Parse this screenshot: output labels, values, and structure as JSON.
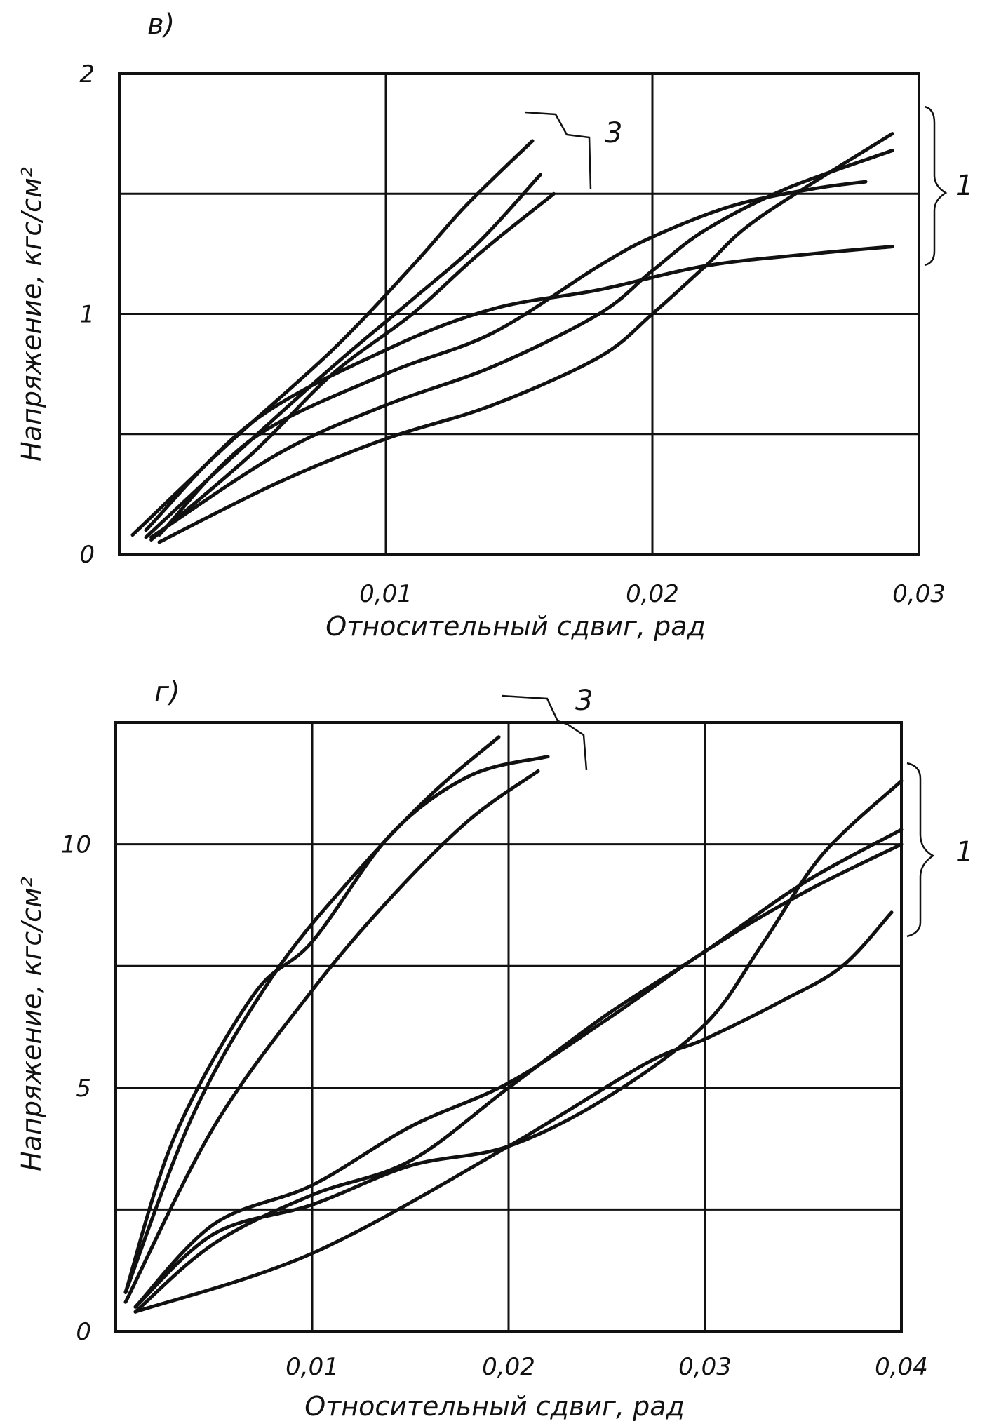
{
  "chart_data": [
    {
      "panel_label": "в)",
      "type": "line",
      "xlabel": "Относительный сдвиг, рад",
      "ylabel": "Напряжение, кгс/см²",
      "xlim": [
        0,
        0.03
      ],
      "ylim": [
        0,
        2
      ],
      "x_ticks": [
        {
          "value": 0.01,
          "label": "0,01"
        },
        {
          "value": 0.02,
          "label": "0,02"
        },
        {
          "value": 0.03,
          "label": "0,03"
        }
      ],
      "y_ticks": [
        {
          "value": 0,
          "label": "0"
        },
        {
          "value": 1,
          "label": "1"
        },
        {
          "value": 2,
          "label": "2"
        }
      ],
      "x_grid": [
        0.01,
        0.02
      ],
      "y_grid": [
        0.5,
        1,
        1.5
      ],
      "annotations": [
        {
          "text": "3",
          "group": "group3"
        },
        {
          "text": "1",
          "group": "group1"
        }
      ],
      "series": [
        {
          "group": "group3",
          "points": [
            [
              0.0005,
              0.08
            ],
            [
              0.004,
              0.45
            ],
            [
              0.008,
              0.85
            ],
            [
              0.011,
              1.2
            ],
            [
              0.013,
              1.45
            ],
            [
              0.0155,
              1.72
            ]
          ]
        },
        {
          "group": "group3",
          "points": [
            [
              0.001,
              0.07
            ],
            [
              0.004,
              0.38
            ],
            [
              0.008,
              0.78
            ],
            [
              0.011,
              1.06
            ],
            [
              0.0135,
              1.3
            ],
            [
              0.0158,
              1.58
            ]
          ]
        },
        {
          "group": "group3",
          "points": [
            [
              0.0012,
              0.06
            ],
            [
              0.005,
              0.42
            ],
            [
              0.008,
              0.75
            ],
            [
              0.011,
              1.0
            ],
            [
              0.0135,
              1.25
            ],
            [
              0.0163,
              1.5
            ]
          ]
        },
        {
          "group": "group1",
          "points": [
            [
              0.0015,
              0.05
            ],
            [
              0.006,
              0.3
            ],
            [
              0.01,
              0.48
            ],
            [
              0.014,
              0.62
            ],
            [
              0.018,
              0.82
            ],
            [
              0.02,
              1.0
            ],
            [
              0.022,
              1.2
            ],
            [
              0.024,
              1.4
            ],
            [
              0.029,
              1.75
            ]
          ]
        },
        {
          "group": "group1",
          "points": [
            [
              0.0012,
              0.07
            ],
            [
              0.006,
              0.42
            ],
            [
              0.01,
              0.62
            ],
            [
              0.014,
              0.78
            ],
            [
              0.018,
              1.0
            ],
            [
              0.02,
              1.18
            ],
            [
              0.022,
              1.35
            ],
            [
              0.025,
              1.52
            ],
            [
              0.029,
              1.68
            ]
          ]
        },
        {
          "group": "group1",
          "points": [
            [
              0.0015,
              0.08
            ],
            [
              0.005,
              0.48
            ],
            [
              0.01,
              0.75
            ],
            [
              0.014,
              0.92
            ],
            [
              0.018,
              1.2
            ],
            [
              0.02,
              1.32
            ],
            [
              0.023,
              1.45
            ],
            [
              0.026,
              1.52
            ],
            [
              0.028,
              1.55
            ]
          ]
        },
        {
          "group": "group1",
          "points": [
            [
              0.001,
              0.1
            ],
            [
              0.005,
              0.55
            ],
            [
              0.01,
              0.85
            ],
            [
              0.014,
              1.02
            ],
            [
              0.018,
              1.1
            ],
            [
              0.022,
              1.2
            ],
            [
              0.026,
              1.25
            ],
            [
              0.029,
              1.28
            ]
          ]
        }
      ]
    },
    {
      "panel_label": "г)",
      "type": "line",
      "xlabel": "Относительный сдвиг, рад",
      "ylabel": "Напряжение, кгс/см²",
      "xlim": [
        0,
        0.04
      ],
      "ylim": [
        0,
        12.5
      ],
      "x_ticks": [
        {
          "value": 0.01,
          "label": "0,01"
        },
        {
          "value": 0.02,
          "label": "0,02"
        },
        {
          "value": 0.03,
          "label": "0,03"
        },
        {
          "value": 0.04,
          "label": "0,04"
        }
      ],
      "y_ticks": [
        {
          "value": 0,
          "label": "0"
        },
        {
          "value": 5,
          "label": "5"
        },
        {
          "value": 10,
          "label": "10"
        }
      ],
      "x_grid": [
        0.01,
        0.02,
        0.03
      ],
      "y_grid": [
        2.5,
        5,
        7.5,
        10
      ],
      "annotations": [
        {
          "text": "3",
          "group": "group3"
        },
        {
          "text": "1",
          "group": "group1"
        }
      ],
      "series": [
        {
          "group": "group3",
          "points": [
            [
              0.0005,
              0.8
            ],
            [
              0.004,
              4.5
            ],
            [
              0.008,
              7.3
            ],
            [
              0.012,
              9.3
            ],
            [
              0.016,
              11.0
            ],
            [
              0.0195,
              12.2
            ]
          ]
        },
        {
          "group": "group3",
          "points": [
            [
              0.0005,
              0.8
            ],
            [
              0.003,
              4.0
            ],
            [
              0.007,
              6.9
            ],
            [
              0.01,
              8.0
            ],
            [
              0.014,
              10.2
            ],
            [
              0.018,
              11.4
            ],
            [
              0.022,
              11.8
            ]
          ]
        },
        {
          "group": "group3",
          "points": [
            [
              0.0005,
              0.6
            ],
            [
              0.005,
              4.2
            ],
            [
              0.01,
              7.0
            ],
            [
              0.014,
              8.9
            ],
            [
              0.018,
              10.5
            ],
            [
              0.0215,
              11.5
            ]
          ]
        },
        {
          "group": "group1",
          "points": [
            [
              0.001,
              0.4
            ],
            [
              0.01,
              1.6
            ],
            [
              0.02,
              3.8
            ],
            [
              0.027,
              5.5
            ],
            [
              0.03,
              6.0
            ],
            [
              0.034,
              6.8
            ],
            [
              0.037,
              7.5
            ],
            [
              0.0395,
              8.6
            ]
          ]
        },
        {
          "group": "group1",
          "points": [
            [
              0.001,
              0.4
            ],
            [
              0.005,
              1.8
            ],
            [
              0.01,
              2.8
            ],
            [
              0.015,
              3.5
            ],
            [
              0.02,
              5.0
            ],
            [
              0.025,
              6.5
            ],
            [
              0.03,
              7.8
            ],
            [
              0.035,
              9.2
            ],
            [
              0.04,
              10.3
            ]
          ]
        },
        {
          "group": "group1",
          "points": [
            [
              0.001,
              0.5
            ],
            [
              0.005,
              2.0
            ],
            [
              0.01,
              2.6
            ],
            [
              0.015,
              3.4
            ],
            [
              0.02,
              3.8
            ],
            [
              0.025,
              4.8
            ],
            [
              0.03,
              6.3
            ],
            [
              0.033,
              8.0
            ],
            [
              0.036,
              9.8
            ],
            [
              0.04,
              11.3
            ]
          ]
        },
        {
          "group": "group1",
          "points": [
            [
              0.001,
              0.5
            ],
            [
              0.005,
              2.2
            ],
            [
              0.01,
              3.0
            ],
            [
              0.015,
              4.2
            ],
            [
              0.02,
              5.1
            ],
            [
              0.025,
              6.4
            ],
            [
              0.03,
              7.8
            ],
            [
              0.035,
              9.0
            ],
            [
              0.04,
              10.0
            ]
          ]
        }
      ]
    }
  ]
}
